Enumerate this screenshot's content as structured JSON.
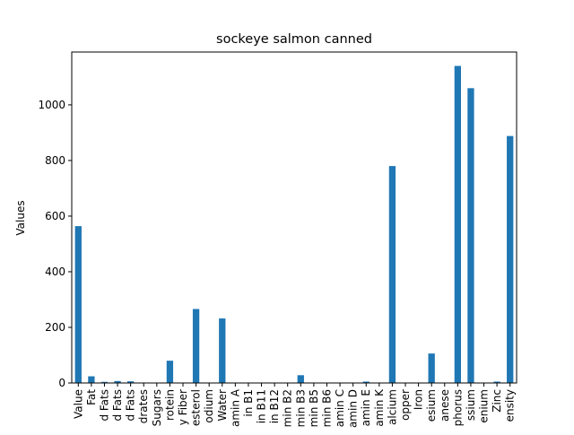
{
  "chart_data": {
    "type": "bar",
    "title": "sockeye salmon canned",
    "xlabel": "",
    "ylabel": "Values",
    "ylim": [
      0,
      1190
    ],
    "yticks": [
      0,
      200,
      400,
      600,
      800,
      1000
    ],
    "grid": false,
    "legend": "none",
    "bar_color": "#1f77b4",
    "categories": [
      "Value",
      "Fat",
      "d Fats",
      "d Fats",
      "d Fats",
      "drates",
      "Sugars",
      "rotein",
      "y Fiber",
      "esterol",
      "odium",
      "Water",
      "amin A",
      "in B1",
      "in B11",
      "in B12",
      "min B2",
      "min B3",
      "min B5",
      "min B6",
      "amin C",
      "amin D",
      "amin E",
      "amin K",
      "alcium",
      "opper",
      "Iron",
      "esium",
      "anese",
      "phorus",
      "ssium",
      "enium",
      "Zinc",
      "ensity"
    ],
    "values": [
      564,
      24,
      4,
      7,
      6,
      0,
      0,
      80,
      0,
      266,
      0,
      232,
      0,
      0,
      0,
      0,
      0,
      28,
      0,
      0,
      0,
      0,
      5,
      0,
      780,
      0,
      0,
      106,
      0,
      1140,
      1060,
      0,
      5,
      888
    ]
  }
}
